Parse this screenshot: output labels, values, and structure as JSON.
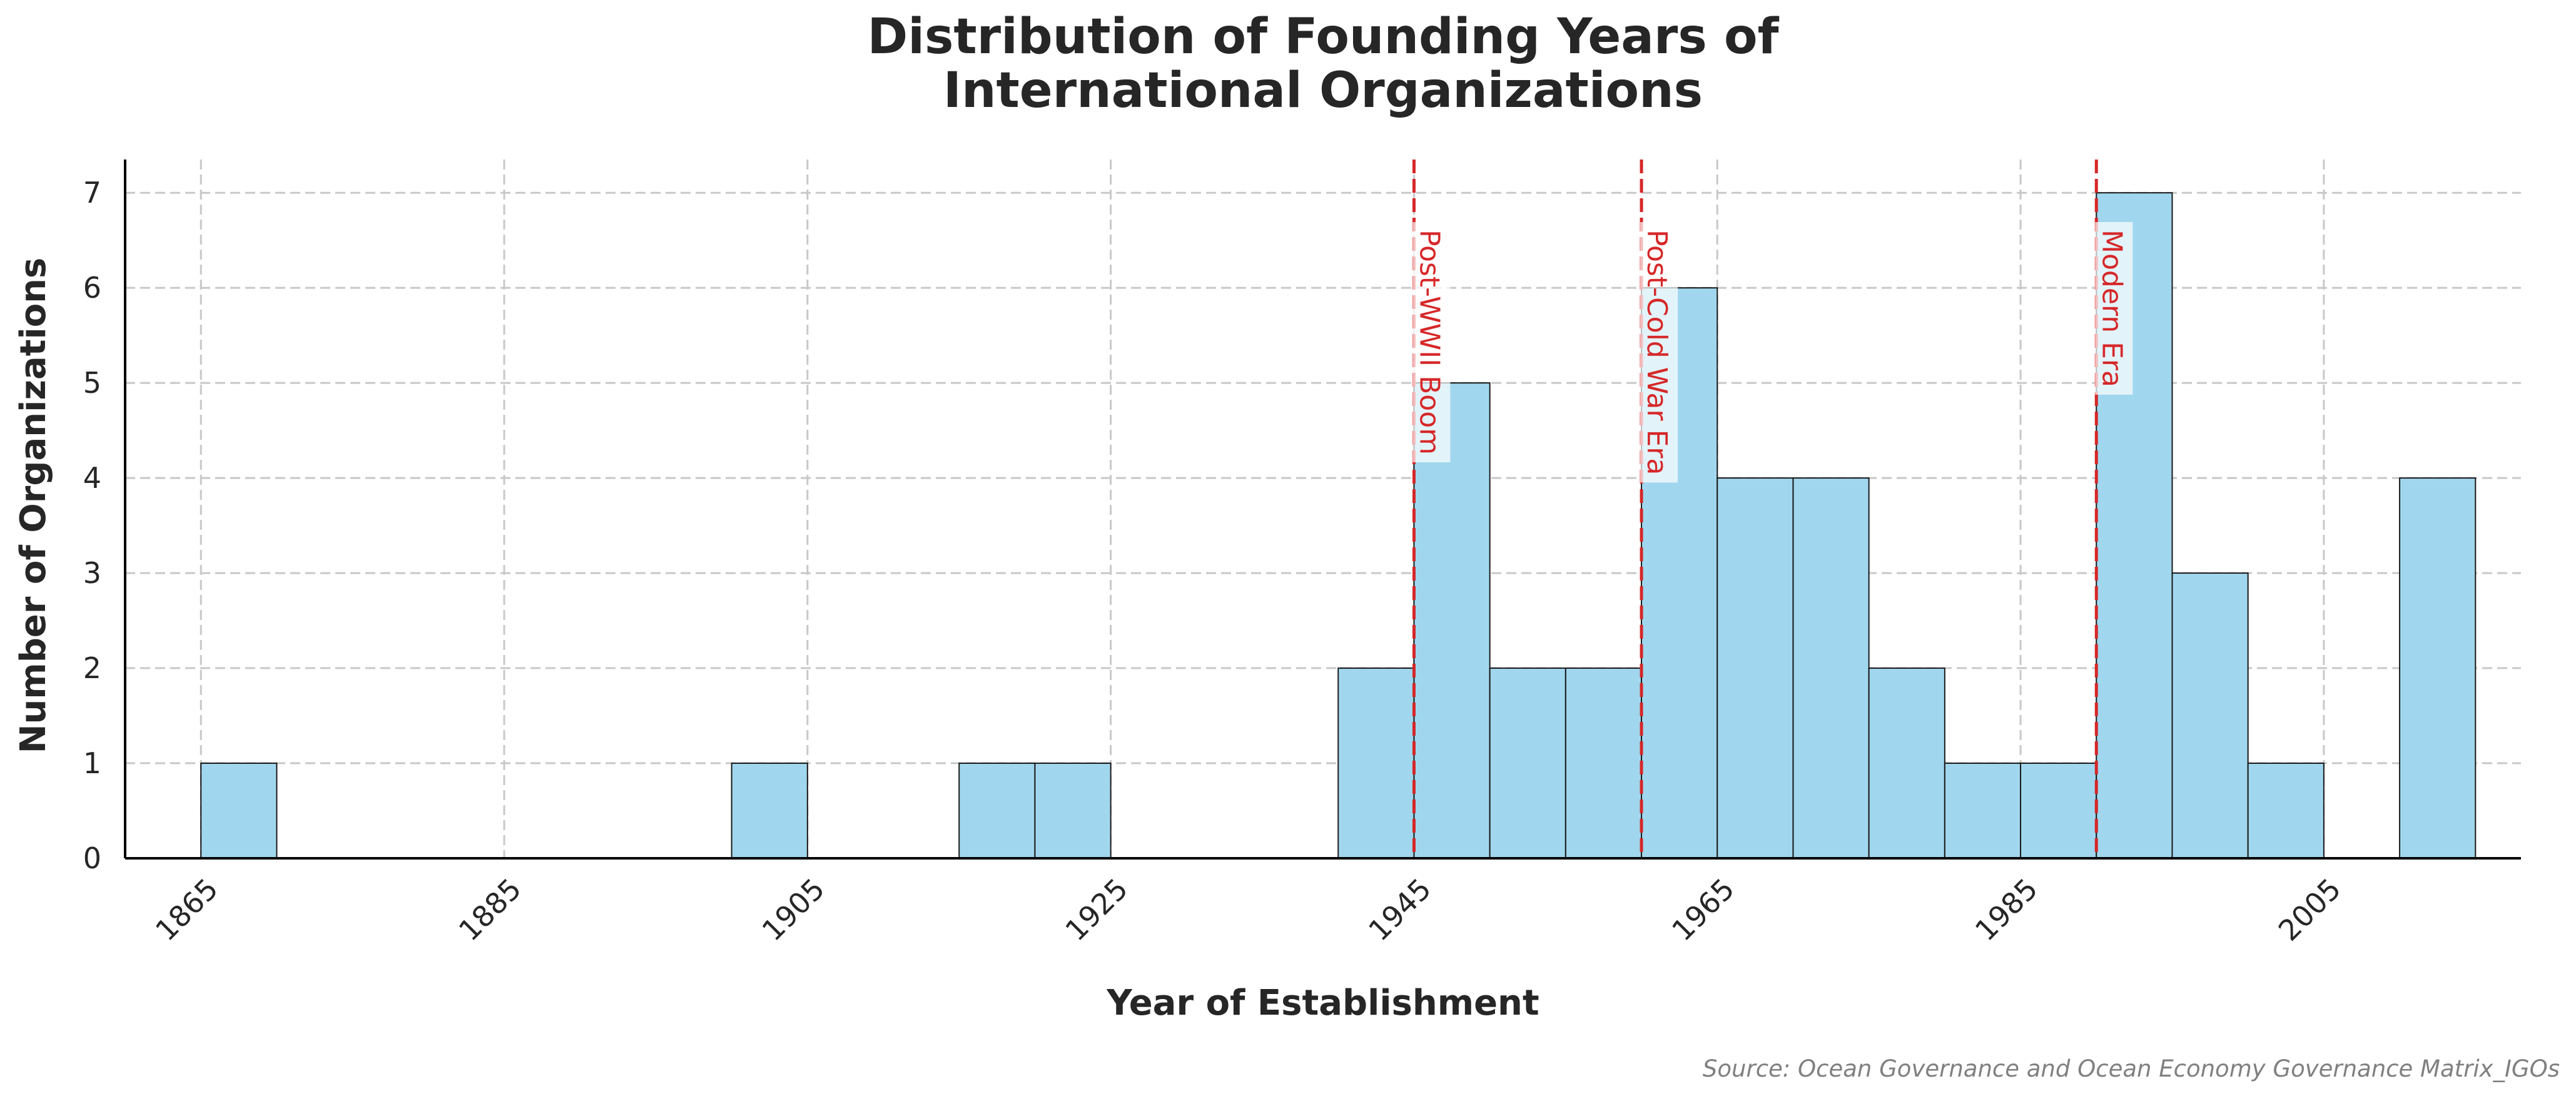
{
  "chart_data": {
    "type": "bar",
    "title": "Distribution of Founding Years of\nInternational Organizations",
    "xlabel": "Year of Establishment",
    "ylabel": "Number of Organizations",
    "source": "Source: Ocean Governance and Ocean Economy Governance Matrix_IGOs",
    "xlim": [
      1860,
      2018
    ],
    "ylim": [
      0,
      7.35
    ],
    "x_ticks": [
      1865,
      1885,
      1905,
      1925,
      1945,
      1965,
      1985,
      2005
    ],
    "y_ticks": [
      0,
      1,
      2,
      3,
      4,
      5,
      6,
      7
    ],
    "bin_width": 5,
    "bins": [
      {
        "start": 1865,
        "end": 1870,
        "count": 1
      },
      {
        "start": 1900,
        "end": 1905,
        "count": 1
      },
      {
        "start": 1915,
        "end": 1920,
        "count": 1
      },
      {
        "start": 1920,
        "end": 1925,
        "count": 1
      },
      {
        "start": 1940,
        "end": 1945,
        "count": 2
      },
      {
        "start": 1945,
        "end": 1950,
        "count": 5
      },
      {
        "start": 1950,
        "end": 1955,
        "count": 2
      },
      {
        "start": 1955,
        "end": 1960,
        "count": 2
      },
      {
        "start": 1960,
        "end": 1965,
        "count": 6
      },
      {
        "start": 1965,
        "end": 1970,
        "count": 4
      },
      {
        "start": 1970,
        "end": 1975,
        "count": 4
      },
      {
        "start": 1975,
        "end": 1980,
        "count": 2
      },
      {
        "start": 1980,
        "end": 1985,
        "count": 1
      },
      {
        "start": 1985,
        "end": 1990,
        "count": 1
      },
      {
        "start": 1990,
        "end": 1995,
        "count": 7
      },
      {
        "start": 1995,
        "end": 2000,
        "count": 3
      },
      {
        "start": 2000,
        "end": 2005,
        "count": 1
      },
      {
        "start": 2010,
        "end": 2015,
        "count": 4
      }
    ],
    "annotations": [
      {
        "year": 1945,
        "label": "Post-WWII Boom"
      },
      {
        "year": 1960,
        "label": "Post-Cold War Era"
      },
      {
        "year": 1990,
        "label": "Modern Era"
      }
    ],
    "grid": true,
    "colors": {
      "bar": "#a1d7ee",
      "edge": "#1a1a1a",
      "annotation": "#d62728",
      "grid": "#c8c8c8"
    }
  }
}
